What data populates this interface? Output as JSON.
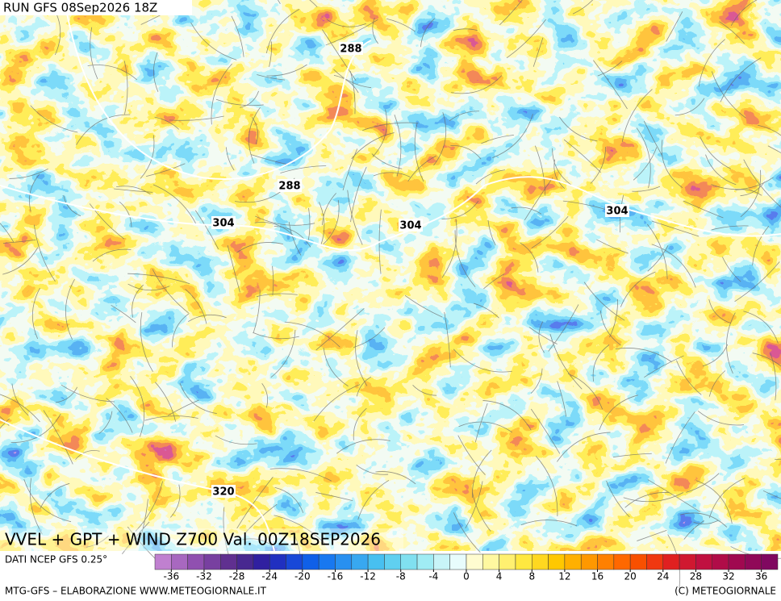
{
  "header": {
    "run": "RUN GFS 08Sep2026 18Z"
  },
  "contour_labels": [
    "288",
    "288",
    "304",
    "304",
    "304",
    "320"
  ],
  "map_title": "VVEL + GPT + WIND Z700 Val. 00Z18SEP2026",
  "source": "DATI NCEP GFS 0.25°",
  "colorbar": {
    "ticks": [
      -36,
      -32,
      -28,
      -24,
      -20,
      -16,
      -12,
      -8,
      -4,
      0,
      4,
      8,
      12,
      16,
      20,
      24,
      28,
      32,
      36
    ],
    "colors": [
      "#c080d0",
      "#a868c0",
      "#9050b0",
      "#7840a0",
      "#603090",
      "#482890",
      "#3020a0",
      "#2030c0",
      "#1848d8",
      "#1060e8",
      "#1878f0",
      "#2890f0",
      "#38a8f0",
      "#48c0f0",
      "#60d0f0",
      "#80e0f0",
      "#a0ecf4",
      "#c8f4f8",
      "#e8fcfc",
      "#fffcd0",
      "#fff8a0",
      "#fff070",
      "#ffe840",
      "#ffd820",
      "#ffc800",
      "#ffb000",
      "#ff9800",
      "#ff8000",
      "#ff6800",
      "#f85000",
      "#f03810",
      "#e02020",
      "#d01830",
      "#c01040",
      "#b00c48",
      "#a00850",
      "#900858",
      "#800860"
    ]
  },
  "footer": {
    "left": "MTG-GFS – ELABORAZIONE WWW.METEOGIORNALE.IT",
    "right": "(C) METEOGIORNALE"
  }
}
